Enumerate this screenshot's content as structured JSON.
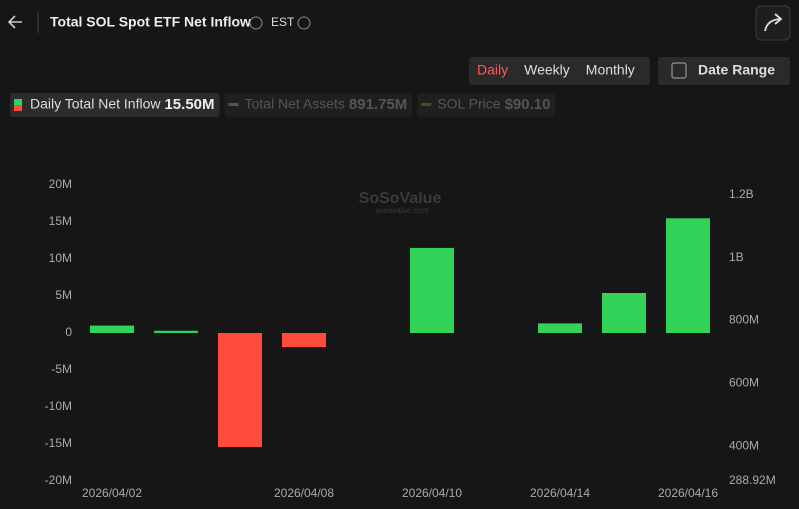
{
  "header": {
    "title": "Total SOL Spot ETF Net Inflow",
    "timezone": "EST"
  },
  "controls": {
    "periods": [
      "Daily",
      "Weekly",
      "Monthly"
    ],
    "date_range": "Date Range"
  },
  "legend": [
    {
      "name": "Daily Total Net Inflow",
      "value": "15.50M"
    },
    {
      "name": "Total Net Assets",
      "value": "891.75M"
    },
    {
      "name": "SOL Price",
      "value": "$90.10"
    }
  ],
  "watermark": {
    "brand": "SoSoValue",
    "site": "sosovalue.com"
  },
  "chart_data": {
    "type": "bar",
    "categories": [
      "2026/04/02",
      null,
      null,
      "2026/04/08",
      null,
      "2026/04/10",
      null,
      "2026/04/14",
      null,
      "2026/04/16"
    ],
    "series": [
      {
        "name": "Daily Total Net Inflow",
        "color_positive": "#33d35a",
        "color_negative": "#ff4a3d",
        "values": [
          1000000,
          300000,
          -15400000,
          -1900000,
          0,
          11500000,
          0,
          1300000,
          5400000,
          15500000
        ]
      }
    ],
    "ylim": [
      -20000000,
      20000000
    ],
    "yticks": [
      {
        "value": -20000000,
        "label": "-20M"
      },
      {
        "value": -15000000,
        "label": "-15M"
      },
      {
        "value": -10000000,
        "label": "-10M"
      },
      {
        "value": -5000000,
        "label": "-5M"
      },
      0,
      {
        "value": 5000000,
        "label": "5M"
      },
      {
        "value": 10000000,
        "label": "10M"
      },
      {
        "value": 15000000,
        "label": "15M"
      },
      {
        "value": 20000000,
        "label": "20M"
      }
    ],
    "y2lim": [
      288920000,
      1231700000
    ],
    "y2ticks": [
      {
        "value": 288920000,
        "label": "288.92M"
      },
      {
        "value": 400000000,
        "label": "400M"
      },
      {
        "value": 600000000,
        "label": "600M"
      },
      {
        "value": 800000000,
        "label": "800M"
      },
      {
        "value": 1000000000,
        "label": "1B"
      },
      {
        "value": 1200000000,
        "label": "1.2B"
      }
    ],
    "grid": false
  }
}
